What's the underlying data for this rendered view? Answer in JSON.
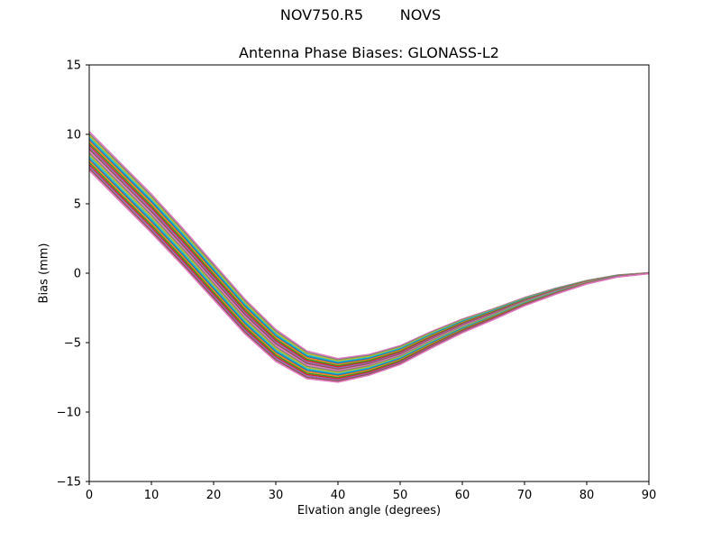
{
  "figure": {
    "background": "#ffffff",
    "axis_color": "#000000"
  },
  "chart_data": {
    "type": "line",
    "title": "NOV750.R5        NOVS",
    "subtitle": "Antenna Phase Biases: GLONASS-L2",
    "xlabel": "Elvation angle (degrees)",
    "ylabel": "Bias (mm)",
    "xlim": [
      0,
      90
    ],
    "ylim": [
      -15,
      15
    ],
    "xticks": [
      0,
      10,
      20,
      30,
      40,
      50,
      60,
      70,
      80,
      90
    ],
    "yticks": [
      -15,
      -10,
      -5,
      0,
      5,
      10,
      15
    ],
    "grid": false,
    "legend": "none",
    "x": [
      0,
      5,
      10,
      15,
      20,
      25,
      30,
      35,
      40,
      45,
      50,
      55,
      60,
      65,
      70,
      75,
      80,
      85,
      90
    ],
    "band_center": [
      8.8,
      6.55,
      4.3,
      1.9,
      -0.6,
      -3.1,
      -5.2,
      -6.6,
      -7.0,
      -6.6,
      -5.9,
      -4.8,
      -3.8,
      -2.95,
      -2.05,
      -1.3,
      -0.65,
      -0.2,
      0.0
    ],
    "band_halfwidth": [
      1.4,
      1.4,
      1.4,
      1.35,
      1.3,
      1.25,
      1.15,
      1.0,
      0.85,
      0.75,
      0.68,
      0.6,
      0.5,
      0.4,
      0.3,
      0.22,
      0.13,
      0.07,
      0.03
    ],
    "band_top_at_0deg": 10.2,
    "band_bottom_at_0deg": 7.4,
    "dip_min_value": -7.85,
    "dip_min_x": 40,
    "end_value_at_90deg": 0.0,
    "n_lines": 21,
    "line_width": 1.5,
    "line_colors": [
      "#e377c2",
      "#7f7f7f",
      "#bcbd22",
      "#17becf",
      "#1f77b4",
      "#ff7f0e",
      "#2ca02c",
      "#d62728",
      "#9467bd",
      "#8c564b",
      "#e377c2",
      "#7f7f7f",
      "#bcbd22",
      "#17becf",
      "#1f77b4",
      "#ff7f0e",
      "#2ca02c",
      "#d62728",
      "#9467bd",
      "#8c564b",
      "#e377c2"
    ]
  }
}
